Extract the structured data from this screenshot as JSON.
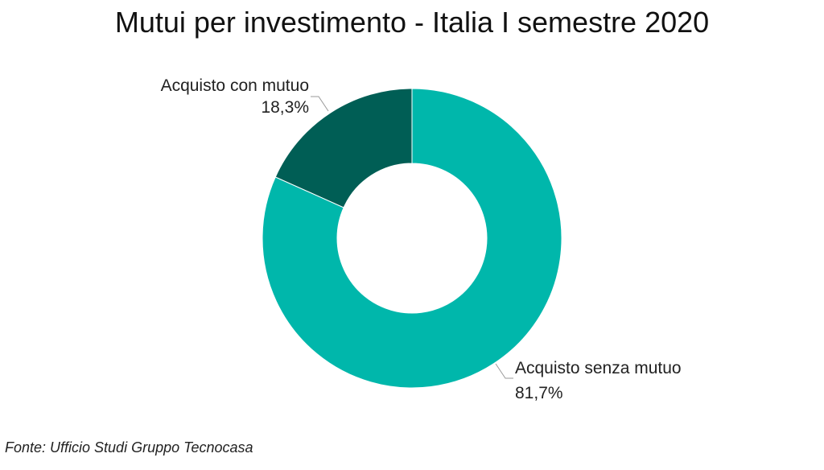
{
  "chart_data": {
    "type": "pie",
    "title": "Mutui per investimento - Italia I semestre 2020",
    "donut": true,
    "categories": [
      "Acquisto con mutuo",
      "Acquisto senza mutuo"
    ],
    "values": [
      18.3,
      81.7
    ],
    "value_labels": [
      "18,3%",
      "81,7%"
    ],
    "colors": [
      "#005E55",
      "#00B7AB"
    ],
    "legend": "none"
  },
  "footer": {
    "source": "Fonte: Ufficio Studi Gruppo Tecnocasa"
  }
}
